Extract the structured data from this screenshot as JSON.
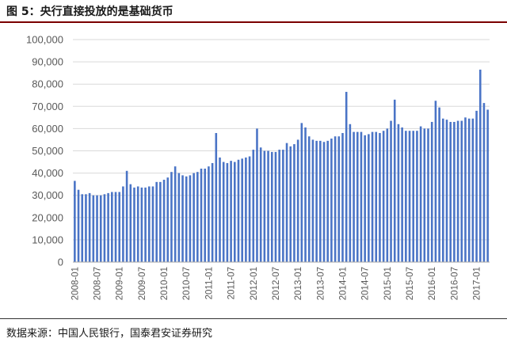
{
  "header": {
    "title": "图 5：央行直接投放的是基础货币"
  },
  "footer": {
    "source": "数据来源：中国人民银行，国泰君安证券研究"
  },
  "colors": {
    "bar": "#4a74c6",
    "grid": "#d9d9d9",
    "axis": "#595959",
    "rule": "#7a0000"
  },
  "chart_data": {
    "type": "bar",
    "title": "",
    "xlabel": "",
    "ylabel": "",
    "ylim": [
      0,
      100000
    ],
    "yticks": [
      "0",
      "10,000",
      "20,000",
      "30,000",
      "40,000",
      "50,000",
      "60,000",
      "70,000",
      "80,000",
      "90,000",
      "100,000"
    ],
    "xtick_labels": [
      "2008-01",
      "2008-07",
      "2009-01",
      "2009-07",
      "2010-01",
      "2010-07",
      "2011-01",
      "2011-07",
      "2012-01",
      "2012-07",
      "2013-01",
      "2013-07",
      "2014-01",
      "2014-07",
      "2015-01",
      "2015-07",
      "2016-01",
      "2016-07",
      "2017-01"
    ],
    "categories": [
      "2008-01",
      "2008-02",
      "2008-03",
      "2008-04",
      "2008-05",
      "2008-06",
      "2008-07",
      "2008-08",
      "2008-09",
      "2008-10",
      "2008-11",
      "2008-12",
      "2009-01",
      "2009-02",
      "2009-03",
      "2009-04",
      "2009-05",
      "2009-06",
      "2009-07",
      "2009-08",
      "2009-09",
      "2009-10",
      "2009-11",
      "2009-12",
      "2010-01",
      "2010-02",
      "2010-03",
      "2010-04",
      "2010-05",
      "2010-06",
      "2010-07",
      "2010-08",
      "2010-09",
      "2010-10",
      "2010-11",
      "2010-12",
      "2011-01",
      "2011-02",
      "2011-03",
      "2011-04",
      "2011-05",
      "2011-06",
      "2011-07",
      "2011-08",
      "2011-09",
      "2011-10",
      "2011-11",
      "2011-12",
      "2012-01",
      "2012-02",
      "2012-03",
      "2012-04",
      "2012-05",
      "2012-06",
      "2012-07",
      "2012-08",
      "2012-09",
      "2012-10",
      "2012-11",
      "2012-12",
      "2013-01",
      "2013-02",
      "2013-03",
      "2013-04",
      "2013-05",
      "2013-06",
      "2013-07",
      "2013-08",
      "2013-09",
      "2013-10",
      "2013-11",
      "2013-12",
      "2014-01",
      "2014-02",
      "2014-03",
      "2014-04",
      "2014-05",
      "2014-06",
      "2014-07",
      "2014-08",
      "2014-09",
      "2014-10",
      "2014-11",
      "2014-12",
      "2015-01",
      "2015-02",
      "2015-03",
      "2015-04",
      "2015-05",
      "2015-06",
      "2015-07",
      "2015-08",
      "2015-09",
      "2015-10",
      "2015-11",
      "2015-12",
      "2016-01",
      "2016-02",
      "2016-03",
      "2016-04",
      "2016-05",
      "2016-06",
      "2016-07",
      "2016-08",
      "2016-09",
      "2016-10",
      "2016-11",
      "2016-12",
      "2017-01",
      "2017-02",
      "2017-03",
      "2017-04"
    ],
    "values": [
      36500,
      32500,
      30500,
      30500,
      31000,
      30000,
      30000,
      30000,
      30500,
      31000,
      31500,
      31500,
      31500,
      34000,
      41000,
      35000,
      33500,
      34000,
      33500,
      33500,
      34000,
      34000,
      36000,
      36000,
      37000,
      38000,
      40500,
      43000,
      40000,
      39000,
      38500,
      39000,
      40000,
      40500,
      42000,
      42000,
      43000,
      44500,
      58000,
      47000,
      45000,
      44500,
      45500,
      45000,
      46000,
      46500,
      47000,
      47500,
      50500,
      60000,
      51500,
      50000,
      50000,
      49500,
      49500,
      50500,
      50500,
      53500,
      52000,
      53000,
      55000,
      62500,
      60500,
      56500,
      55000,
      54500,
      54500,
      54000,
      54500,
      55500,
      56500,
      56500,
      58000,
      76500,
      62000,
      58500,
      58500,
      58500,
      57000,
      57500,
      58500,
      58500,
      58000,
      59000,
      60000,
      63500,
      73000,
      62000,
      60500,
      59000,
      59000,
      59000,
      59000,
      61000,
      60000,
      60000,
      63000,
      72500,
      69500,
      64500,
      64000,
      63000,
      63000,
      63500,
      63500,
      65000,
      64500,
      64500,
      68000,
      86500,
      71500,
      68500
    ]
  }
}
